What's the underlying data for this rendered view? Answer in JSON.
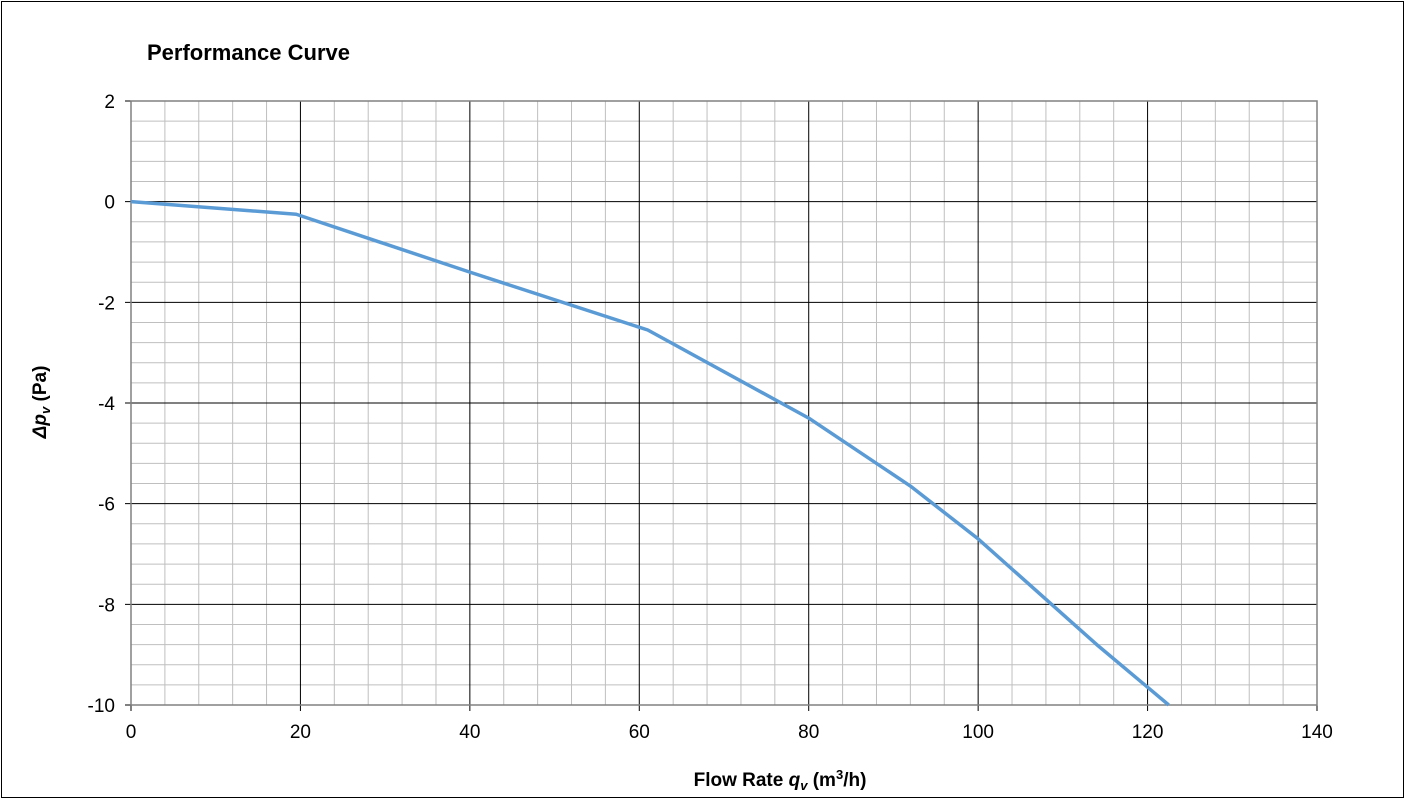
{
  "chart_data": {
    "type": "line",
    "title": "Performance Curve",
    "xlabel": {
      "prefix": "Flow Rate ",
      "symbol": "q",
      "subscript": "v",
      "unit_open": " (m",
      "unit_sup": "3",
      "unit_close": "/h)"
    },
    "ylabel": {
      "symbol": "Δp",
      "subscript": "v",
      "unit": " (Pa)"
    },
    "xlim": [
      0,
      140
    ],
    "ylim": [
      -10,
      2
    ],
    "x_major_step": 20,
    "y_major_step": 2,
    "x_minor_step": 4,
    "y_minor_step": 0.4,
    "grid": true,
    "legend": "none",
    "x_ticks": [
      "0",
      "20",
      "40",
      "60",
      "80",
      "100",
      "120",
      "140"
    ],
    "y_ticks": [
      "2",
      "0",
      "-2",
      "-4",
      "-6",
      "-8",
      "-10"
    ],
    "series": [
      {
        "color": "#5b9bd5",
        "x": [
          0,
          19.5,
          40,
          61,
          80,
          92,
          100,
          114,
          122.5
        ],
        "y": [
          0,
          -0.25,
          -1.4,
          -2.55,
          -4.3,
          -5.65,
          -6.7,
          -8.8,
          -10
        ]
      }
    ]
  }
}
